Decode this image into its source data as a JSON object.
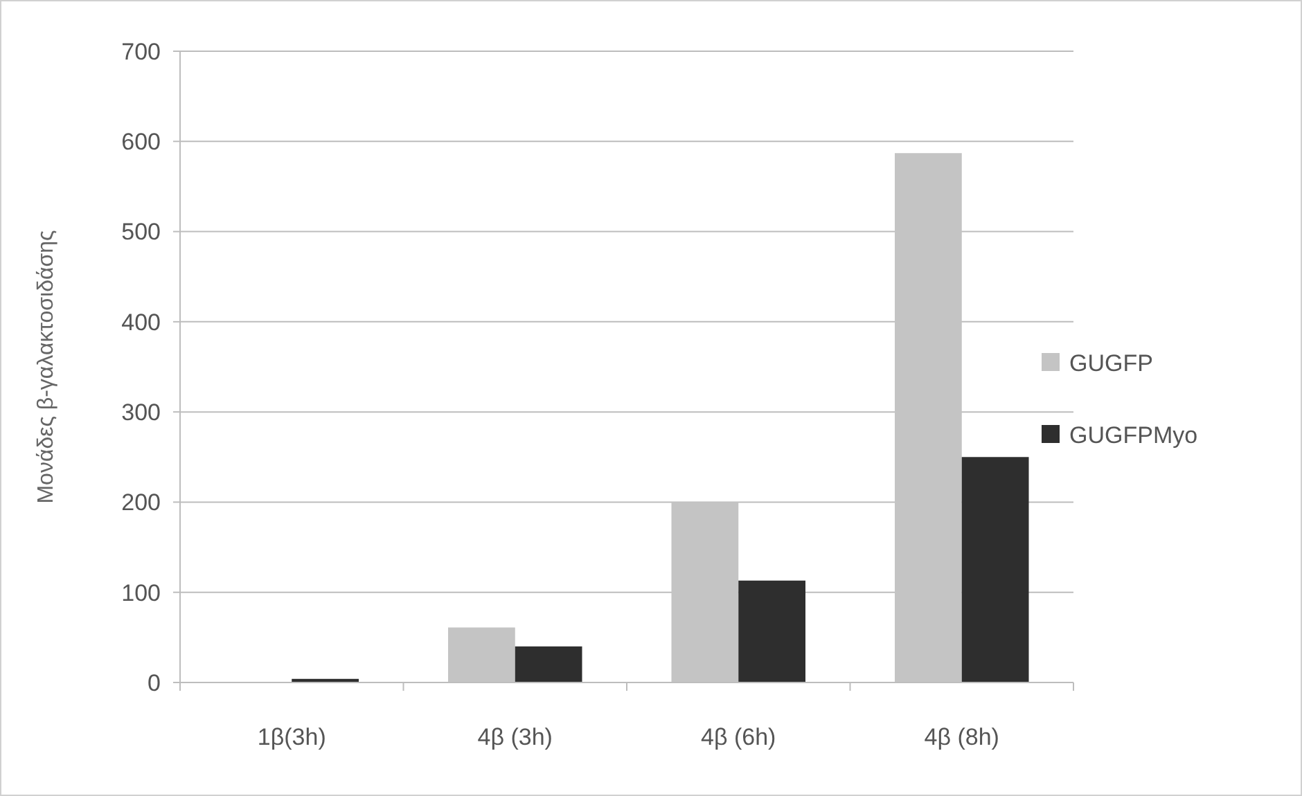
{
  "chart_data": {
    "type": "bar",
    "ylabel": "Μονάδες β-γαλακτοσιδάσης",
    "categories": [
      "1β(3h)",
      "4β (3h)",
      "4β (6h)",
      "4β (8h)"
    ],
    "series": [
      {
        "name": "GUGFP",
        "color": "#c4c4c4",
        "values": [
          null,
          61,
          200,
          587
        ]
      },
      {
        "name": "GUGFPMyo",
        "color": "#2e2e2e",
        "values": [
          4,
          40,
          113,
          250
        ]
      }
    ],
    "ylim": [
      0,
      700
    ],
    "yticks": [
      0,
      100,
      200,
      300,
      400,
      500,
      600,
      700
    ],
    "grid": "y",
    "legend": "right"
  }
}
